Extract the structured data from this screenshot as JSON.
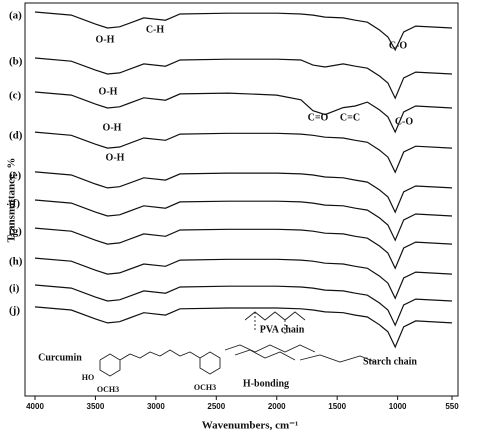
{
  "chart_data": {
    "type": "line",
    "xlabel": "Wavenumbers, cm⁻¹",
    "ylabel": "Transmittance, %",
    "x": [
      4000,
      3700,
      3500,
      3400,
      3300,
      3100,
      2920,
      2800,
      2400,
      2000,
      1800,
      1700,
      1600,
      1450,
      1350,
      1250,
      1150,
      1080,
      1020,
      950,
      850,
      550
    ],
    "xlim": [
      4000,
      550
    ],
    "xticks": [
      4000,
      3500,
      3000,
      2500,
      2000,
      1500,
      1000,
      550
    ],
    "ylim": [
      0,
      100
    ],
    "series": [
      {
        "name": "(a)",
        "color": "#111111",
        "values": [
          98.2,
          97.4,
          95.1,
          94.1,
          94.4,
          96.7,
          96.1,
          97.7,
          97.9,
          97.9,
          97.7,
          97.4,
          96.9,
          96.7,
          96.1,
          95.6,
          93.6,
          91.8,
          88.5,
          93.1,
          94.6,
          94.1
        ]
      },
      {
        "name": "(b)",
        "color": "#111111",
        "values": [
          86.4,
          85.6,
          83.3,
          82.3,
          82.6,
          84.9,
          84.3,
          85.9,
          86.1,
          86.1,
          85.9,
          84.6,
          84.1,
          84.9,
          84.3,
          83.8,
          81.8,
          80.0,
          76.1,
          81.3,
          82.8,
          82.3
        ]
      },
      {
        "name": "(c)",
        "color": "#111111",
        "values": [
          77.7,
          76.9,
          74.6,
          73.6,
          73.9,
          76.2,
          75.6,
          77.2,
          77.4,
          76.9,
          75.7,
          72.9,
          71.9,
          73.7,
          74.1,
          75.1,
          73.1,
          71.3,
          67.4,
          72.6,
          74.1,
          73.6
        ]
      },
      {
        "name": "(d)",
        "color": "#111111",
        "values": [
          67.4,
          66.6,
          64.3,
          63.3,
          63.6,
          65.9,
          65.3,
          66.9,
          67.1,
          67.1,
          66.9,
          66.6,
          66.1,
          65.9,
          65.3,
          64.8,
          62.8,
          61.0,
          57.1,
          62.3,
          63.8,
          63.3
        ]
      },
      {
        "name": "(e)",
        "color": "#111111",
        "values": [
          57.2,
          56.4,
          54.1,
          53.1,
          53.4,
          55.7,
          55.1,
          56.7,
          56.9,
          56.9,
          56.7,
          56.4,
          55.9,
          55.7,
          55.1,
          54.6,
          52.6,
          50.8,
          46.9,
          52.1,
          53.6,
          53.1
        ]
      },
      {
        "name": "(f)",
        "color": "#111111",
        "values": [
          50,
          49.2,
          46.9,
          45.9,
          46.2,
          48.5,
          47.9,
          49.5,
          49.7,
          49.7,
          49.5,
          49.2,
          48.7,
          48.5,
          47.9,
          47.4,
          45.4,
          43.6,
          39.7,
          44.9,
          46.4,
          45.9
        ]
      },
      {
        "name": "(g)",
        "color": "#111111",
        "values": [
          42.8,
          42.0,
          39.7,
          38.7,
          39.0,
          41.3,
          40.7,
          42.3,
          42.5,
          42.5,
          42.3,
          42.0,
          41.5,
          41.3,
          40.7,
          40.2,
          38.2,
          36.4,
          32.5,
          37.7,
          39.2,
          38.7
        ]
      },
      {
        "name": "(h)",
        "color": "#111111",
        "values": [
          35.1,
          34.3,
          32.0,
          31.0,
          31.3,
          33.6,
          33.0,
          34.6,
          34.8,
          34.8,
          34.6,
          34.3,
          33.8,
          33.6,
          33.0,
          32.5,
          30.5,
          28.7,
          24.8,
          30.0,
          31.5,
          31.0
        ]
      },
      {
        "name": "(i)",
        "color": "#111111",
        "values": [
          28.2,
          27.4,
          25.1,
          24.1,
          24.4,
          26.7,
          26.1,
          27.7,
          27.9,
          27.9,
          27.7,
          27.4,
          26.9,
          26.7,
          26.1,
          25.6,
          23.6,
          21.8,
          17.9,
          23.1,
          24.6,
          24.1
        ]
      },
      {
        "name": "(j)",
        "color": "#111111",
        "values": [
          22.6,
          21.8,
          19.5,
          18.5,
          18.8,
          21.1,
          20.5,
          22.1,
          22.3,
          22.3,
          22.1,
          21.8,
          21.3,
          21.1,
          20.5,
          20.0,
          18.0,
          16.2,
          12.3,
          17.5,
          19.0,
          18.5
        ]
      }
    ],
    "annotations": [
      "O-H",
      "C-H",
      "C-O",
      "O-H",
      "O-H",
      "C=O",
      "C=C",
      "C-O",
      "O-H",
      "PVA chain",
      "Curcumin",
      "Starch chain",
      "H-bonding",
      "HO",
      "OCH3",
      "OCH3"
    ]
  }
}
